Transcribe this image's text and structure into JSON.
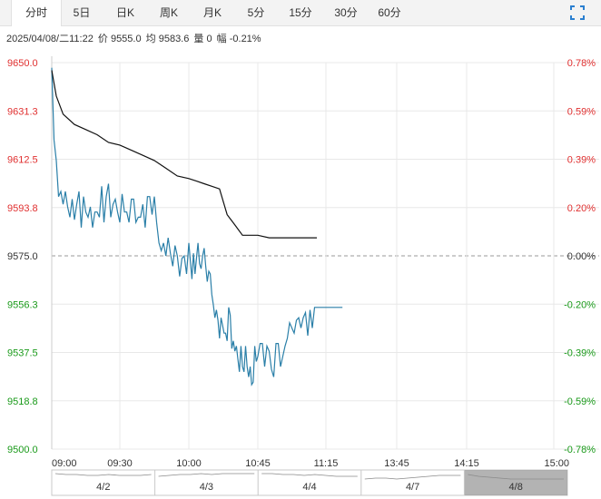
{
  "tabs": [
    {
      "label": "分时",
      "active": true
    },
    {
      "label": "5日",
      "active": false
    },
    {
      "label": "日K",
      "active": false
    },
    {
      "label": "周K",
      "active": false
    },
    {
      "label": "月K",
      "active": false
    },
    {
      "label": "5分",
      "active": false
    },
    {
      "label": "15分",
      "active": false
    },
    {
      "label": "30分",
      "active": false
    },
    {
      "label": "60分",
      "active": false
    }
  ],
  "info": {
    "datetime": "2025/04/08/二11:22",
    "price": "价 9555.0",
    "avg": "均 9583.6",
    "volume": "量 0",
    "change": "幅 -0.21%"
  },
  "colors": {
    "up": "#e03030",
    "down": "#1a9a1a",
    "price_line": "#2a7fa8",
    "avg_line": "#111111",
    "grid": "#e8e8e8",
    "ref": "#999999"
  },
  "chart_data": {
    "type": "line",
    "y_left_ticks": [
      "9650.0",
      "9631.3",
      "9612.5",
      "9593.8",
      "9575.0",
      "9556.3",
      "9537.5",
      "9518.8",
      "9500.0"
    ],
    "y_right_ticks": [
      "0.78%",
      "0.59%",
      "0.39%",
      "0.20%",
      "0.00%",
      "-0.20%",
      "-0.39%",
      "-0.59%",
      "-0.78%"
    ],
    "ylim": [
      9500.0,
      9650.0
    ],
    "prev_close": 9575.0,
    "x_ticks": [
      "09:00",
      "09:30",
      "10:00",
      "10:45",
      "11:15",
      "13:45",
      "14:15",
      "15:00"
    ],
    "session_minutes": 225,
    "series": [
      {
        "key": "price",
        "minutes": [
          0,
          1,
          2,
          3,
          4,
          5,
          6,
          7,
          8,
          9,
          10,
          11,
          12,
          13,
          14,
          15,
          16,
          17,
          18,
          19,
          20,
          21,
          22,
          23,
          24,
          25,
          26,
          27,
          28,
          29,
          30,
          31,
          32,
          33,
          34,
          35,
          36,
          37,
          38,
          39,
          40,
          41,
          42,
          43,
          44,
          45,
          46,
          47,
          48,
          49,
          50,
          51,
          52,
          53,
          54,
          55,
          56,
          57,
          58,
          59,
          60,
          61,
          62,
          63,
          64,
          65,
          66,
          67,
          68,
          69,
          70,
          71,
          72,
          73,
          74,
          75,
          76,
          77,
          78,
          79,
          80,
          81,
          82,
          83,
          84,
          85,
          86,
          87,
          88,
          89,
          90,
          91,
          92,
          93,
          94,
          95,
          96,
          97,
          98,
          99,
          100,
          101,
          102,
          103,
          104,
          105,
          106,
          107,
          108,
          109,
          110,
          111,
          112,
          113,
          114,
          115,
          116,
          117,
          118,
          119,
          120,
          121,
          122,
          123,
          124,
          125,
          126,
          127,
          128,
          129,
          130,
          131,
          132,
          133,
          134,
          135,
          136,
          137,
          138,
          139,
          140,
          141,
          142
        ],
        "values": [
          9648,
          9620,
          9612,
          9598,
          9600,
          9595,
          9600,
          9594,
          9590,
          9597,
          9589,
          9595,
          9600,
          9586,
          9598,
          9592,
          9590,
          9594,
          9586,
          9592,
          9592,
          9590,
          9602,
          9588,
          9598,
          9603,
          9590,
          9595,
          9597,
          9592,
          9588,
          9599,
          9592,
          9592,
          9588,
          9597,
          9597,
          9588,
          9590,
          9590,
          9595,
          9586,
          9598,
          9598,
          9591,
          9598,
          9588,
          9580,
          9577,
          9580,
          9575,
          9582,
          9576,
          9571,
          9579,
          9575,
          9567,
          9574,
          9575,
          9568,
          9580,
          9573,
          9566,
          9576,
          9568,
          9574,
          9580,
          9572,
          9570,
          9575,
          9578,
          9571,
          9565,
          9569,
          9568,
          9560,
          9556,
          9551,
          9554,
          9550,
          9543,
          9551,
          9548,
          9545,
          9545,
          9542,
          9555,
          9552,
          9539,
          9542,
          9538,
          9540,
          9535,
          9530,
          9540,
          9532,
          9530,
          9540,
          9532,
          9528,
          9532,
          9525,
          9526,
          9540,
          9534,
          9536,
          9541,
          9541,
          9532,
          9540,
          9538,
          9531,
          9528,
          9541,
          9541,
          9532,
          9536,
          9540,
          9543,
          9549,
          9547,
          9545,
          9550,
          9551,
          9547,
          9551,
          9553,
          9544,
          9554,
          9547,
          9555,
          9555,
          9555,
          9555,
          9555,
          9555,
          9555,
          9555,
          9555,
          9555,
          9555,
          9555,
          9555
        ],
        "note": "minute-by-minute price estimated from the chart"
      },
      {
        "key": "average",
        "minutes": [
          0,
          2,
          5,
          10,
          15,
          20,
          25,
          30,
          35,
          40,
          45,
          50,
          55,
          60,
          65,
          70,
          75,
          80,
          85,
          90,
          95,
          100,
          105,
          110,
          115,
          120,
          125,
          130,
          131
        ],
        "values": [
          9647,
          9637,
          9630,
          9626,
          9624,
          9622,
          9619,
          9618,
          9616,
          9614,
          9612,
          9609,
          9606,
          9605,
          9604,
          9603,
          9602,
          9601,
          9591,
          9587,
          9583,
          9583,
          9583,
          9582,
          9582,
          9582,
          9582,
          9582,
          9582
        ],
        "note": "running average estimated from the chart"
      }
    ],
    "day_labels": [
      "4/2",
      "4/3",
      "4/4",
      "4/7",
      "4/8"
    ]
  }
}
